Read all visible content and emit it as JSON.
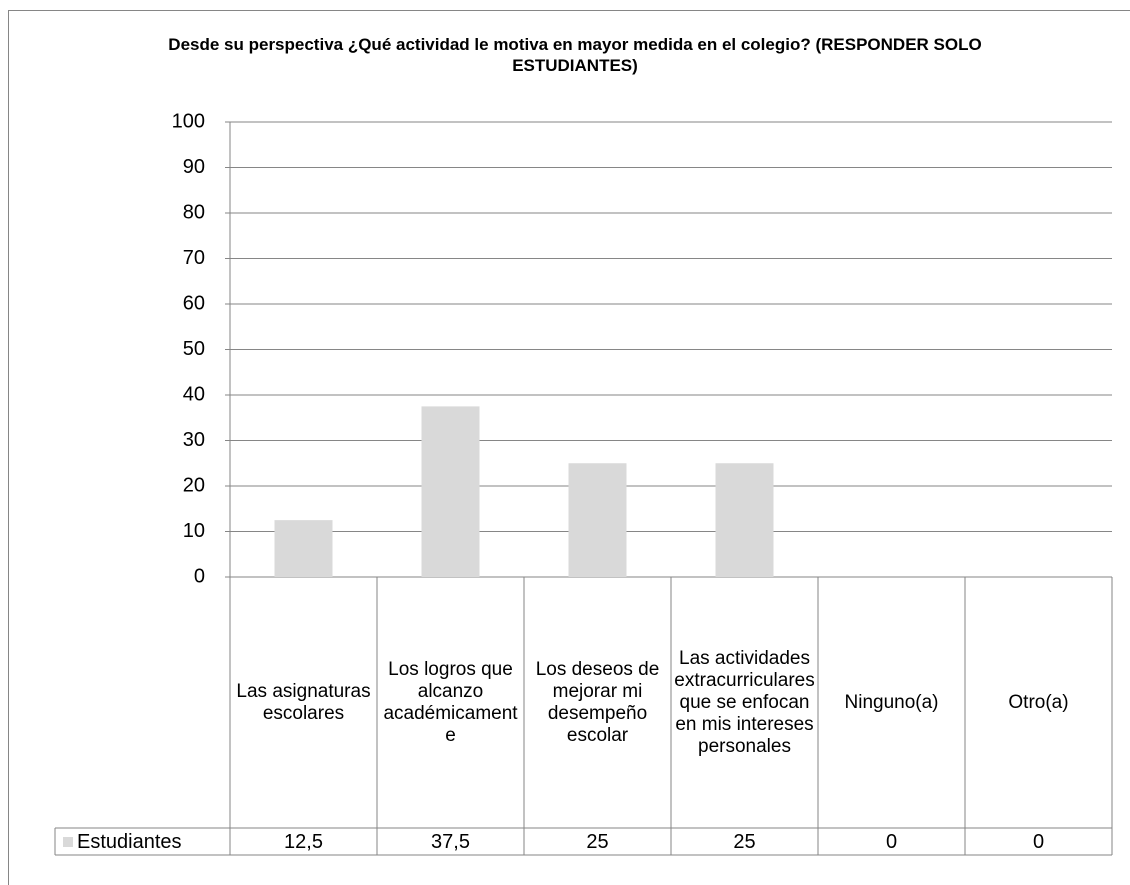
{
  "chart_data": {
    "type": "bar",
    "title": "Desde su perspectiva ¿Qué actividad le motiva en mayor medida en el colegio? (RESPONDER SOLO ESTUDIANTES)",
    "categories": [
      "Las asignaturas escolares",
      "Los logros que alcanzo académicamente",
      "Los deseos de mejorar mi desempeño escolar",
      "Las actividades extracurriculares que se enfocan en mis intereses personales",
      "Ninguno(a)",
      "Otro(a)"
    ],
    "series": [
      {
        "name": "Estudiantes",
        "color": "#d9d9d9",
        "values": [
          12.5,
          37.5,
          25,
          25,
          0,
          0
        ],
        "value_labels": [
          "12,5",
          "37,5",
          "25",
          "25",
          "0",
          "0"
        ]
      }
    ],
    "ylim": [
      0,
      100
    ],
    "yticks": [
      0,
      10,
      20,
      30,
      40,
      50,
      60,
      70,
      80,
      90,
      100
    ],
    "grid": true
  }
}
